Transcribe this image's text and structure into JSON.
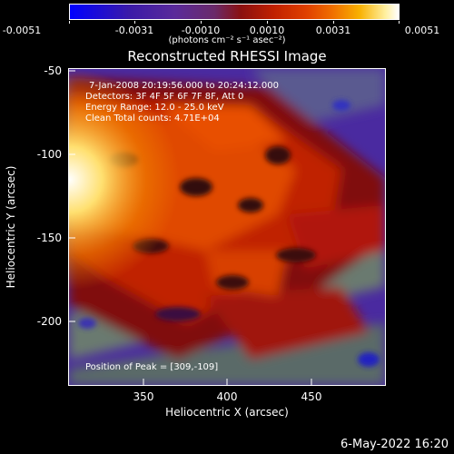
{
  "colorbar": {
    "tick_labels": [
      "-0.0051",
      "-0.0031",
      "-0.0010",
      "0.0010",
      "0.0031",
      "0.0051"
    ],
    "units": "(photons cm⁻² s⁻¹ asec⁻²)"
  },
  "title": "Reconstructed RHESSI Image",
  "annotations": {
    "time": "7-Jan-2008 20:19:56.000 to 20:24:12.000",
    "detectors": "Detectors: 3F 4F 5F 6F 7F 8F, Att 0",
    "energy": "Energy Range: 12.0 - 25.0 keV",
    "clean": "Clean     Total counts: 4.71E+04",
    "peak": "Position of Peak = [309,-109]"
  },
  "axes": {
    "xlabel": "Heliocentric X (arcsec)",
    "ylabel": "Heliocentric Y (arcsec)",
    "xticks": [
      "350",
      "400",
      "450"
    ],
    "yticks": [
      "-50",
      "-100",
      "-150",
      "-200"
    ]
  },
  "timestamp": "6-May-2022 16:20"
}
